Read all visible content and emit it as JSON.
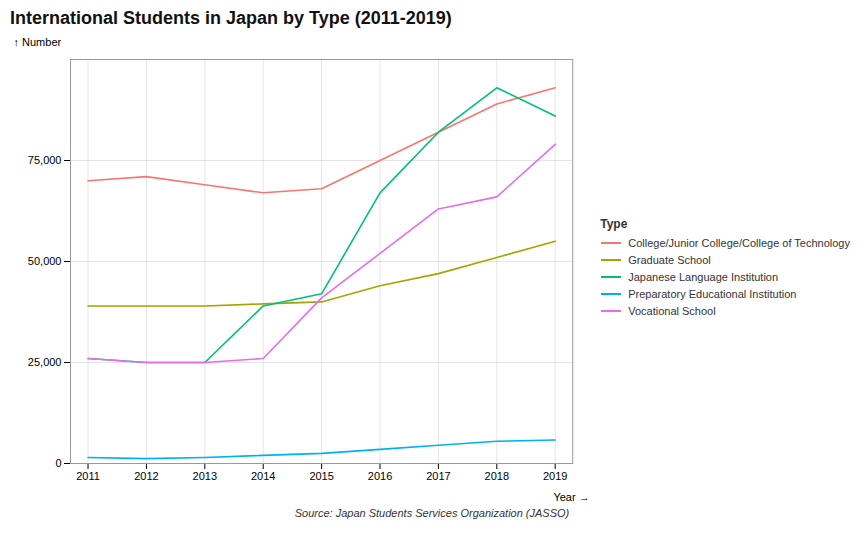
{
  "chart_data": {
    "type": "line",
    "title": "International Students in Japan by Type (2011-2019)",
    "xlabel": "Year",
    "ylabel": "Number",
    "caption": "Source: Japan Students Services Organization (JASSO)",
    "legend_title": "Type",
    "x": [
      2011,
      2012,
      2013,
      2014,
      2015,
      2016,
      2017,
      2018,
      2019
    ],
    "series": [
      {
        "name": "College/Junior College/College of Technology",
        "color": "#F8766D",
        "values": [
          70000,
          71000,
          69000,
          67000,
          68000,
          75000,
          82000,
          89000,
          93000
        ]
      },
      {
        "name": "Graduate School",
        "color": "#A3A500",
        "values": [
          39000,
          39000,
          39000,
          39500,
          40000,
          44000,
          47000,
          51000,
          55000
        ]
      },
      {
        "name": "Japanese Language Institution",
        "color": "#00BF7D",
        "values": [
          26000,
          25000,
          25000,
          39000,
          42000,
          67000,
          82000,
          93000,
          86000
        ]
      },
      {
        "name": "Preparatory Educational Institution",
        "color": "#00B0F6",
        "values": [
          1500,
          1200,
          1500,
          2000,
          2500,
          3500,
          4500,
          5500,
          5800
        ]
      },
      {
        "name": "Vocational School",
        "color": "#E76BF3",
        "values": [
          26000,
          25000,
          25000,
          26000,
          41000,
          52000,
          63000,
          66000,
          79000
        ]
      }
    ],
    "xlim": [
      2010.7,
      2019.3
    ],
    "xticks": [
      2011,
      2012,
      2013,
      2014,
      2015,
      2016,
      2017,
      2018,
      2019
    ],
    "ylim": [
      0,
      100000
    ],
    "yticks": [
      0,
      {
        "value": 25000,
        "label": "25,000"
      },
      {
        "value": 50000,
        "label": "50,000"
      },
      {
        "value": 75000,
        "label": "75,000"
      }
    ],
    "grid": true,
    "legend": "right"
  }
}
